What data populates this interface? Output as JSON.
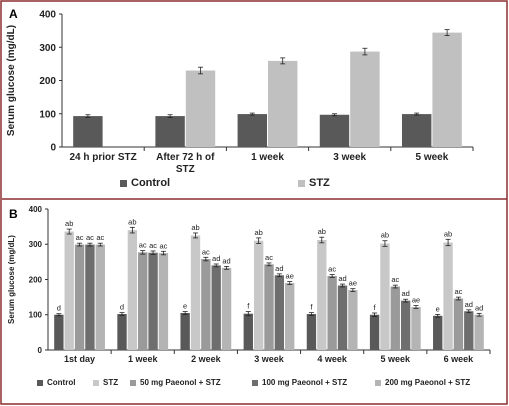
{
  "figure": {
    "border_color": "#8B2F2F"
  },
  "chart_data": [
    {
      "panel_label": "A",
      "type": "bar",
      "categories": [
        "24 h prior STZ",
        "After 72 h  of STZ",
        "1 week",
        "3 week",
        "5 week"
      ],
      "series": [
        {
          "name": "Control",
          "color": "#595959",
          "values": [
            93,
            93,
            99,
            97,
            99
          ],
          "errors": [
            4,
            4,
            3,
            3,
            3
          ]
        },
        {
          "name": "STZ",
          "color": "#C0C0C0",
          "values": [
            null,
            230,
            259,
            287,
            344
          ],
          "errors": [
            null,
            10,
            9,
            10,
            9
          ]
        }
      ],
      "xlabel": "",
      "ylabel": "Serum glucose (mg/dL)",
      "ylim": [
        0,
        400
      ],
      "yticks": [
        "0",
        "100",
        "200",
        "300",
        "400"
      ],
      "grid": false,
      "legend_position": "bottom"
    },
    {
      "panel_label": "B",
      "type": "bar",
      "categories": [
        "1st day",
        "1 week",
        "2 week",
        "3 week",
        "4 week",
        "5 week",
        "6 week"
      ],
      "series": [
        {
          "name": "Control",
          "color": "#595959",
          "values": [
            100,
            102,
            105,
            103,
            102,
            100,
            97
          ],
          "errors": [
            3,
            4,
            4,
            6,
            4,
            5,
            4
          ],
          "labels": [
            "d",
            "d",
            "e",
            "f",
            "f",
            "f",
            "e"
          ]
        },
        {
          "name": "STZ",
          "color": "#C8C8C8",
          "values": [
            336,
            340,
            325,
            310,
            312,
            302,
            305
          ],
          "errors": [
            7,
            8,
            7,
            8,
            8,
            8,
            9
          ],
          "labels": [
            "ab",
            "ab",
            "ab",
            "ab",
            "ab",
            "ab",
            "ab"
          ]
        },
        {
          "name": "50 mg Paeonol + STZ",
          "color": "#9A9A9A",
          "values": [
            299,
            277,
            258,
            243,
            210,
            180,
            146
          ],
          "errors": [
            4,
            5,
            5,
            4,
            4,
            4,
            4
          ],
          "labels": [
            "ac",
            "ac",
            "ac",
            "ac",
            "ac",
            "ac",
            "ac"
          ]
        },
        {
          "name": "100 mg Paeonol + STZ",
          "color": "#6E6E6E",
          "values": [
            299,
            276,
            240,
            212,
            183,
            140,
            110
          ],
          "errors": [
            4,
            5,
            4,
            4,
            4,
            4,
            4
          ],
          "labels": [
            "ac",
            "ac",
            "ad",
            "ad",
            "ad",
            "ad",
            "ad"
          ]
        },
        {
          "name": "200 mg Paeonol + STZ",
          "color": "#B4B4B4",
          "values": [
            299,
            275,
            233,
            190,
            170,
            122,
            100
          ],
          "errors": [
            4,
            5,
            4,
            4,
            4,
            4,
            4
          ],
          "labels": [
            "ac",
            "ac",
            "ad",
            "ae",
            "ae",
            "ae",
            "ad"
          ]
        }
      ],
      "xlabel": "",
      "ylabel": "Serum glucose (mg/dL)",
      "ylim": [
        0,
        400
      ],
      "yticks": [
        "0",
        "100",
        "200",
        "300",
        "400"
      ],
      "grid": false,
      "legend_position": "bottom"
    }
  ]
}
